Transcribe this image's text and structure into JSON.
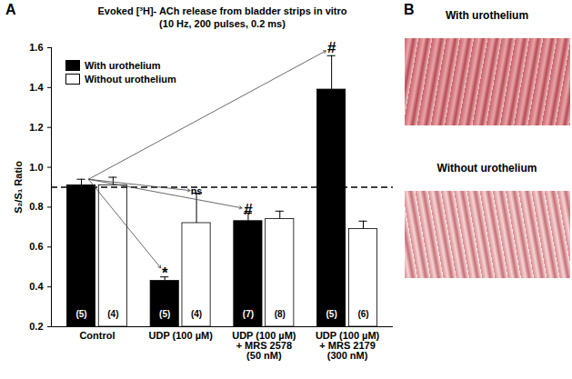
{
  "chart_data": {
    "type": "bar",
    "panel_label": "A",
    "title": "Evoked [³H]- ACh release from bladder strips in vitro",
    "subtitle": "(10 Hz, 200 pulses, 0.2 ms)",
    "y_label": "S₂/S₁ Ratio",
    "categories": [
      "Control",
      "UDP (100 µM)",
      "UDP (100 µM)\n+ MRS 2578\n(50 nM)",
      "UDP (100 µM)\n+ MRS 2179\n(300 nM)"
    ],
    "series": [
      {
        "name": "With urothelium",
        "color": "#000000",
        "values": [
          0.91,
          0.43,
          0.73,
          1.39
        ],
        "errors": [
          0.03,
          0.02,
          0.04,
          0.17
        ],
        "n_labels": [
          "(5)",
          "(5)",
          "(7)",
          "(5)"
        ]
      },
      {
        "name": "Without urothelium",
        "color": "#ffffff",
        "values": [
          0.91,
          0.72,
          0.74,
          0.69
        ],
        "errors": [
          0.04,
          0.15,
          0.04,
          0.04
        ],
        "n_labels": [
          "(4)",
          "(4)",
          "(8)",
          "(6)"
        ]
      }
    ],
    "ylim": [
      0.2,
      1.6
    ],
    "yticks": [
      0.2,
      0.4,
      0.6,
      0.8,
      {
        "value": 1,
        "label": "1.0"
      },
      1.2,
      1.4,
      1.6
    ],
    "reference_line": 0.9,
    "legend": "top-left",
    "annotations": [
      {
        "text": "*",
        "category_index": 1,
        "series": "With urothelium",
        "y": 0.47
      },
      {
        "text": "ns",
        "category_index": 1,
        "series": "Without urothelium",
        "y": 0.88
      },
      {
        "text": "#",
        "category_index": 2,
        "series": "With urothelium",
        "y": 0.79
      },
      {
        "text": "#",
        "category_index": 3,
        "series": "With urothelium",
        "y": 1.6
      }
    ]
  },
  "panel_b": {
    "label": "B",
    "images": [
      "With urothelium",
      "Without urothelium"
    ]
  }
}
